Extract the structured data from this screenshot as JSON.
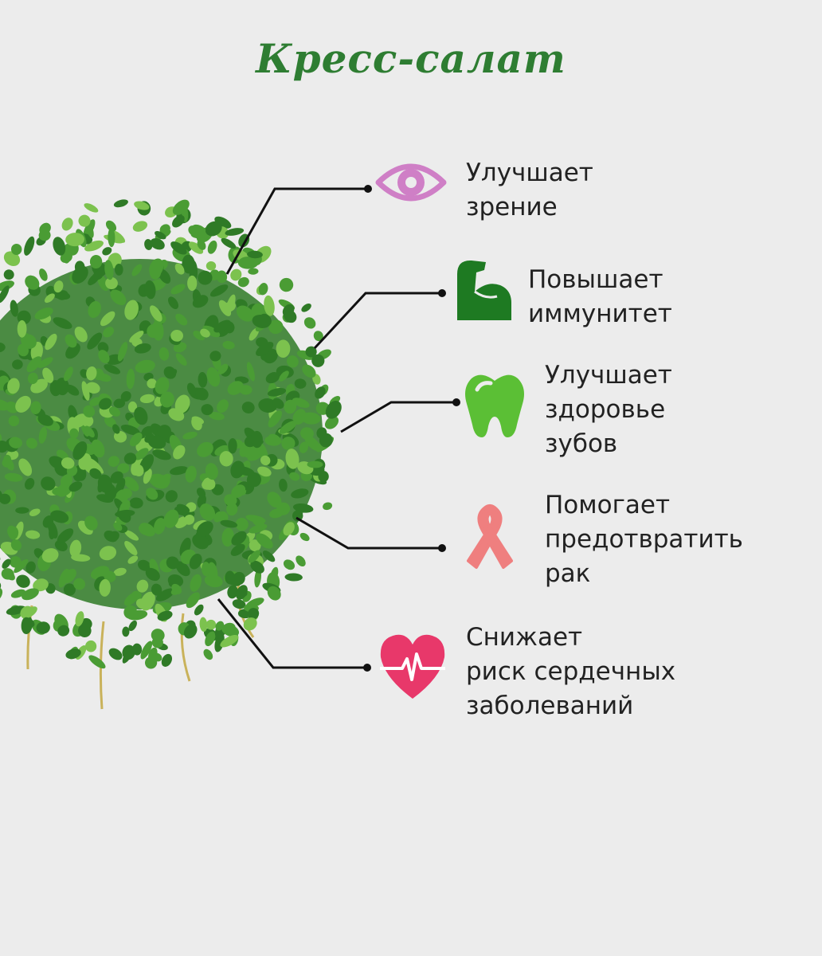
{
  "title": "Кресс-салат",
  "colors": {
    "title": "#2e7d32",
    "background": "#ececec",
    "leaf_dark": "#2f7a26",
    "leaf_mid": "#4a9c34",
    "leaf_light": "#7cc24e",
    "stem": "#c9b25a",
    "line": "#111111"
  },
  "benefits": [
    {
      "icon": "eye-icon",
      "color": "#cf7fc6",
      "lines": [
        "Улучшает",
        "зрение"
      ]
    },
    {
      "icon": "flexed-biceps-icon",
      "color": "#1e7a22",
      "lines": [
        "Повышает",
        "иммунитет"
      ]
    },
    {
      "icon": "tooth-icon",
      "color": "#5bbf35",
      "lines": [
        "Улучшает",
        "здоровье",
        "зубов"
      ]
    },
    {
      "icon": "awareness-ribbon-icon",
      "color": "#ef7f7f",
      "lines": [
        "Помогает",
        "предотвратить",
        "рак"
      ]
    },
    {
      "icon": "heart-pulse-icon",
      "color": "#e8386a",
      "lines": [
        "Снижает",
        "риск сердечных",
        "заболеваний"
      ]
    }
  ]
}
